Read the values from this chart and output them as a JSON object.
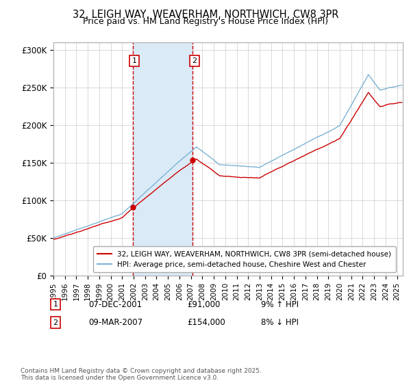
{
  "title": "32, LEIGH WAY, WEAVERHAM, NORTHWICH, CW8 3PR",
  "subtitle": "Price paid vs. HM Land Registry's House Price Index (HPI)",
  "ylabel_ticks": [
    "£0",
    "£50K",
    "£100K",
    "£150K",
    "£200K",
    "£250K",
    "£300K"
  ],
  "ytick_values": [
    0,
    50000,
    100000,
    150000,
    200000,
    250000,
    300000
  ],
  "ylim": [
    0,
    310000
  ],
  "xlim_start": 1995.0,
  "xlim_end": 2025.5,
  "sale1_date": 2001.92,
  "sale1_price": 91000,
  "sale2_date": 2007.18,
  "sale2_price": 154000,
  "shaded_region_color": "#daeaf7",
  "vline_color": "#cc0000",
  "property_line_color": "#cc0000",
  "hpi_line_color": "#7ab3d4",
  "legend_property": "32, LEIGH WAY, WEAVERHAM, NORTHWICH, CW8 3PR (semi-detached house)",
  "legend_hpi": "HPI: Average price, semi-detached house, Cheshire West and Chester",
  "footnote": "Contains HM Land Registry data © Crown copyright and database right 2025.\nThis data is licensed under the Open Government Licence v3.0.",
  "background_color": "#ffffff",
  "grid_color": "#cccccc"
}
